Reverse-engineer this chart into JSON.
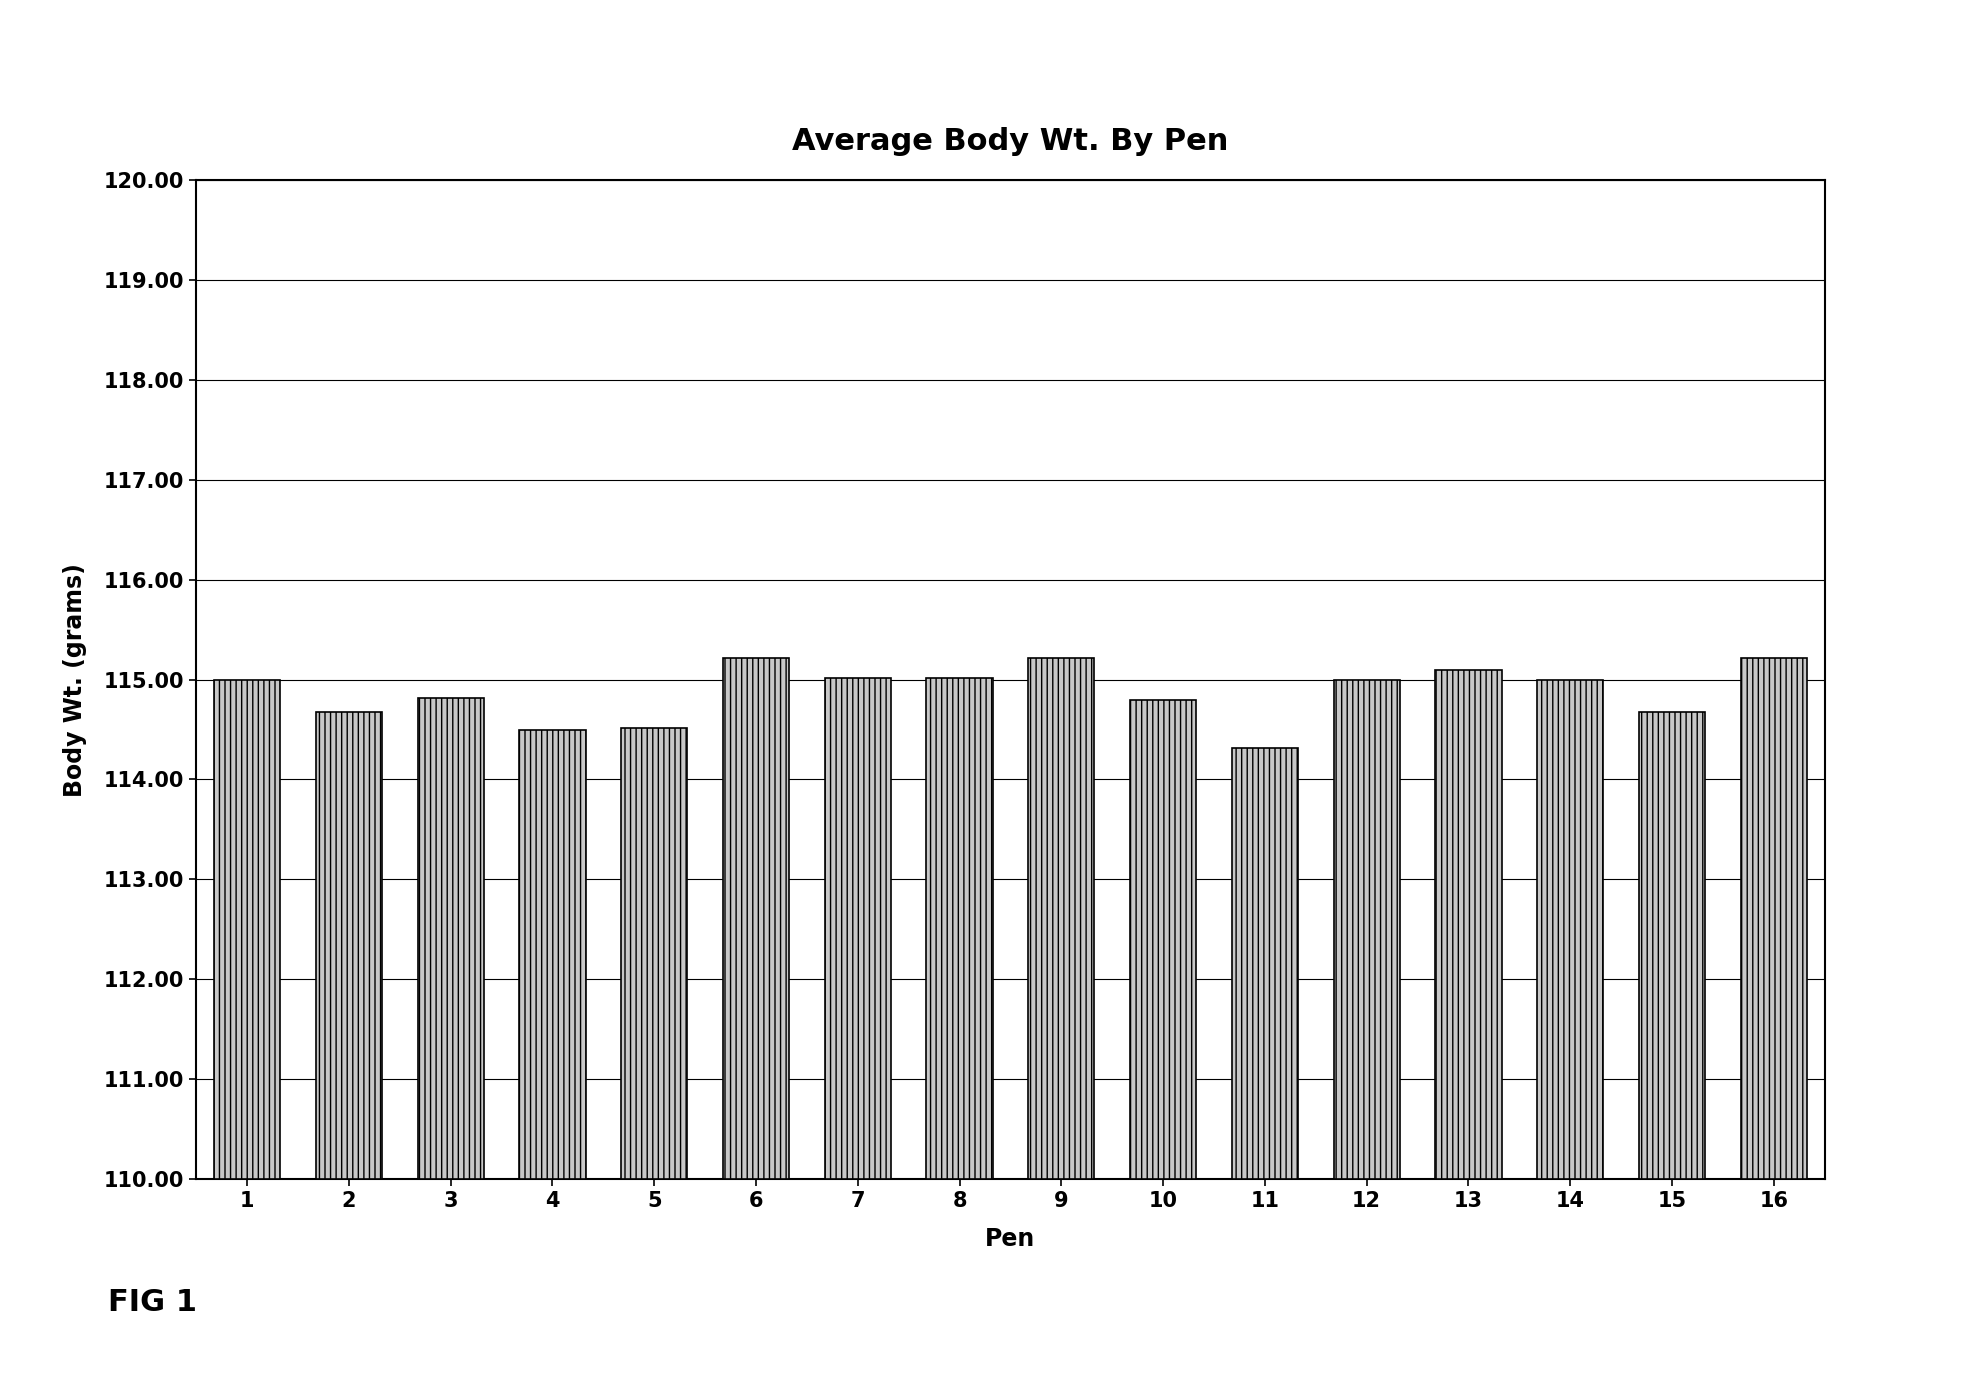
{
  "title": "Average Body Wt. By Pen",
  "xlabel": "Pen",
  "ylabel": "Body Wt. (grams)",
  "categories": [
    "1",
    "2",
    "3",
    "4",
    "5",
    "6",
    "7",
    "8",
    "9",
    "10",
    "11",
    "12",
    "13",
    "14",
    "15",
    "16"
  ],
  "values": [
    115.0,
    114.68,
    114.82,
    114.5,
    114.52,
    115.22,
    115.02,
    115.02,
    115.22,
    114.8,
    114.32,
    115.0,
    115.1,
    115.0,
    114.68,
    115.22
  ],
  "ylim": [
    110.0,
    120.0
  ],
  "yticks": [
    110.0,
    111.0,
    112.0,
    113.0,
    114.0,
    115.0,
    116.0,
    117.0,
    118.0,
    119.0,
    120.0
  ],
  "bar_color": "#c8c8c8",
  "bar_edge_color": "#000000",
  "background_color": "#ffffff",
  "title_fontsize": 22,
  "axis_label_fontsize": 17,
  "tick_fontsize": 15,
  "bar_hatch": "|||",
  "ymin": 110.0
}
